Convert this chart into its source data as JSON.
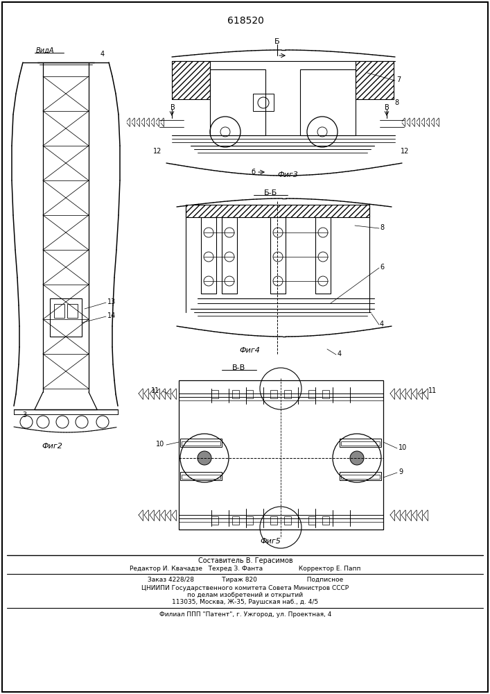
{
  "patent_number": "618520",
  "background_color": "#ffffff",
  "line_color": "#000000",
  "fig_width": 7.07,
  "fig_height": 10.0,
  "dpi": 100,
  "view_labels": {
    "vid_a": "ВидА",
    "fig2": "Фиг2",
    "fig3": "Фиг3",
    "fig4": "Фиг4",
    "fig5": "Фиг5",
    "bb": "Б-Б",
    "vv": "В-В"
  },
  "footer_lines": [
    "Составитель В. Герасимов",
    "Редактор И. Квачадзе   Техред З. Фанта                  Корректор Е. Папп",
    "Заказ 4228/28              Тираж 820                         Подписное",
    "ЦНИИПИ Государственного комитета Совета Министров СССР",
    "по делам изобретений и открытий",
    "113035, Москва, Ж-35, Раушская наб., д. 4/5",
    "Филиал ППП \"Патент\", г. Ужгород, ул. Проектная, 4"
  ]
}
